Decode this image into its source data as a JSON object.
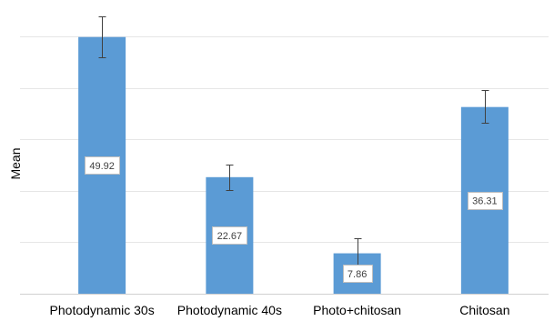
{
  "chart_data": {
    "type": "bar",
    "title": "",
    "xlabel": "",
    "ylabel": "Mean",
    "categories": [
      "Photodynamic 30s",
      "Photodynamic 40s",
      "Photo+chitosan",
      "Chitosan"
    ],
    "values": [
      49.92,
      22.67,
      7.86,
      36.31
    ],
    "error_bars": [
      [
        45.9,
        53.9
      ],
      [
        20.1,
        25.1
      ],
      [
        4.9,
        10.8
      ],
      [
        33.2,
        39.6
      ]
    ],
    "ylim": [
      0,
      55
    ],
    "y_gridlines": [
      10,
      20,
      30,
      40,
      50
    ],
    "grid": true,
    "legend": "none",
    "bar_color": "#5b9bd5",
    "data_labels": [
      "49.92",
      "22.67",
      "7.86",
      "36.31"
    ]
  }
}
